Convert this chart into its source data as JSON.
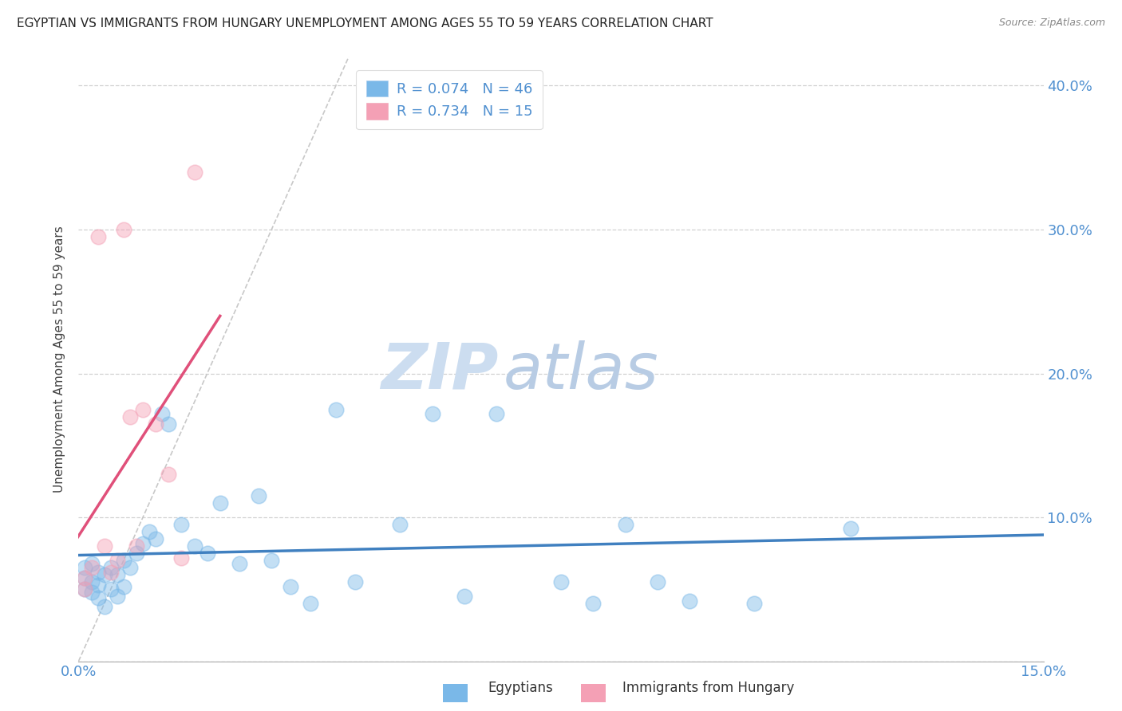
{
  "title": "EGYPTIAN VS IMMIGRANTS FROM HUNGARY UNEMPLOYMENT AMONG AGES 55 TO 59 YEARS CORRELATION CHART",
  "source": "Source: ZipAtlas.com",
  "ylabel": "Unemployment Among Ages 55 to 59 years",
  "xlim": [
    0.0,
    0.15
  ],
  "ylim": [
    0.0,
    0.42
  ],
  "yticks": [
    0.0,
    0.1,
    0.2,
    0.3,
    0.4
  ],
  "yticklabels_right": [
    "",
    "10.0%",
    "20.0%",
    "30.0%",
    "40.0%"
  ],
  "xtick_positions": [
    0.0,
    0.03,
    0.06,
    0.09,
    0.12,
    0.15
  ],
  "xticklabels": [
    "0.0%",
    "",
    "",
    "",
    "",
    "15.0%"
  ],
  "background_color": "#ffffff",
  "grid_color": "#d0d0d0",
  "blue_color": "#7ab8e8",
  "pink_color": "#f4a0b5",
  "line_blue": "#4080c0",
  "line_pink": "#e0507a",
  "ref_dash_color": "#c8c8c8",
  "tick_color": "#5090d0",
  "legend_r1": "R = 0.074",
  "legend_n1": "N = 46",
  "legend_r2": "R = 0.734",
  "legend_n2": "N = 15",
  "egyptians_x": [
    0.001,
    0.001,
    0.001,
    0.002,
    0.002,
    0.002,
    0.003,
    0.003,
    0.003,
    0.004,
    0.004,
    0.005,
    0.005,
    0.006,
    0.006,
    0.007,
    0.007,
    0.008,
    0.009,
    0.01,
    0.011,
    0.012,
    0.013,
    0.014,
    0.016,
    0.018,
    0.02,
    0.022,
    0.025,
    0.028,
    0.03,
    0.033,
    0.036,
    0.04,
    0.043,
    0.05,
    0.055,
    0.06,
    0.065,
    0.075,
    0.08,
    0.085,
    0.09,
    0.095,
    0.105,
    0.12
  ],
  "egyptians_y": [
    0.065,
    0.058,
    0.05,
    0.068,
    0.055,
    0.048,
    0.062,
    0.053,
    0.044,
    0.06,
    0.038,
    0.065,
    0.05,
    0.06,
    0.045,
    0.07,
    0.052,
    0.065,
    0.075,
    0.082,
    0.09,
    0.085,
    0.172,
    0.165,
    0.095,
    0.08,
    0.075,
    0.11,
    0.068,
    0.115,
    0.07,
    0.052,
    0.04,
    0.175,
    0.055,
    0.095,
    0.172,
    0.045,
    0.172,
    0.055,
    0.04,
    0.095,
    0.055,
    0.042,
    0.04,
    0.092
  ],
  "hungary_x": [
    0.001,
    0.001,
    0.002,
    0.003,
    0.004,
    0.005,
    0.006,
    0.007,
    0.008,
    0.009,
    0.01,
    0.012,
    0.014,
    0.016,
    0.018
  ],
  "hungary_y": [
    0.058,
    0.05,
    0.065,
    0.295,
    0.08,
    0.062,
    0.07,
    0.3,
    0.17,
    0.08,
    0.175,
    0.165,
    0.13,
    0.072,
    0.34
  ]
}
